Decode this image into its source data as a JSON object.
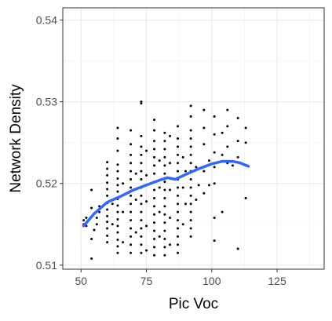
{
  "chart_data": {
    "type": "scatter",
    "xlabel": "Pic Voc",
    "ylabel": "Network Density",
    "xlim": [
      43,
      143
    ],
    "ylim": [
      0.5095,
      0.5415
    ],
    "x_ticks": [
      {
        "value": 50,
        "label": "50"
      },
      {
        "value": 75,
        "label": "75"
      },
      {
        "value": 100,
        "label": "100"
      },
      {
        "value": 125,
        "label": "125"
      }
    ],
    "y_ticks": [
      {
        "value": 0.51,
        "label": "0.51"
      },
      {
        "value": 0.52,
        "label": "0.52"
      },
      {
        "value": 0.53,
        "label": "0.53"
      },
      {
        "value": 0.54,
        "label": "0.54"
      }
    ],
    "grid": true,
    "colors": {
      "points": "#000000",
      "smooth": "#3366ff",
      "grid_major": "#ebebeb",
      "grid_minor": "#f5f5f5",
      "panel_border": "#333333"
    },
    "points": [
      [
        51,
        0.515
      ],
      [
        51,
        0.5155
      ],
      [
        52,
        0.5148
      ],
      [
        52,
        0.5158
      ],
      [
        54,
        0.5108
      ],
      [
        54,
        0.5132
      ],
      [
        54,
        0.517
      ],
      [
        54,
        0.5192
      ],
      [
        55,
        0.5143
      ],
      [
        56,
        0.515
      ],
      [
        56,
        0.5158
      ],
      [
        57,
        0.5165
      ],
      [
        57,
        0.5172
      ],
      [
        60,
        0.5128
      ],
      [
        60,
        0.5136
      ],
      [
        60,
        0.5145
      ],
      [
        60,
        0.5153
      ],
      [
        60,
        0.516
      ],
      [
        60,
        0.5168
      ],
      [
        60,
        0.5176
      ],
      [
        60,
        0.5185
      ],
      [
        60,
        0.5193
      ],
      [
        60,
        0.5201
      ],
      [
        60,
        0.521
      ],
      [
        60,
        0.5218
      ],
      [
        60,
        0.5226
      ],
      [
        62,
        0.515
      ],
      [
        62,
        0.5175
      ],
      [
        64,
        0.5115
      ],
      [
        64,
        0.5123
      ],
      [
        64,
        0.5131
      ],
      [
        64,
        0.514
      ],
      [
        64,
        0.5148
      ],
      [
        64,
        0.5156
      ],
      [
        64,
        0.5165
      ],
      [
        64,
        0.5173
      ],
      [
        64,
        0.5181
      ],
      [
        64,
        0.519
      ],
      [
        64,
        0.5198
      ],
      [
        64,
        0.5206
      ],
      [
        64,
        0.5215
      ],
      [
        64,
        0.5223
      ],
      [
        64,
        0.524
      ],
      [
        64,
        0.5255
      ],
      [
        64,
        0.5268
      ],
      [
        66,
        0.5128
      ],
      [
        66,
        0.5165
      ],
      [
        66,
        0.52
      ],
      [
        69,
        0.5115
      ],
      [
        69,
        0.5125
      ],
      [
        69,
        0.5135
      ],
      [
        69,
        0.5145
      ],
      [
        69,
        0.5155
      ],
      [
        69,
        0.5165
      ],
      [
        69,
        0.5175
      ],
      [
        69,
        0.5185
      ],
      [
        69,
        0.5195
      ],
      [
        69,
        0.5205
      ],
      [
        69,
        0.5215
      ],
      [
        69,
        0.5225
      ],
      [
        69,
        0.5235
      ],
      [
        69,
        0.5248
      ],
      [
        69,
        0.5265
      ],
      [
        71,
        0.514
      ],
      [
        71,
        0.518
      ],
      [
        71,
        0.5212
      ],
      [
        73,
        0.5115
      ],
      [
        73,
        0.5125
      ],
      [
        73,
        0.5135
      ],
      [
        73,
        0.5145
      ],
      [
        73,
        0.5155
      ],
      [
        73,
        0.5165
      ],
      [
        73,
        0.5175
      ],
      [
        73,
        0.5185
      ],
      [
        73,
        0.5195
      ],
      [
        73,
        0.5205
      ],
      [
        73,
        0.5215
      ],
      [
        73,
        0.5225
      ],
      [
        73,
        0.5235
      ],
      [
        73,
        0.5245
      ],
      [
        73,
        0.5258
      ],
      [
        73,
        0.53
      ],
      [
        73,
        0.5298
      ],
      [
        75,
        0.5118
      ],
      [
        75,
        0.5148
      ],
      [
        75,
        0.5178
      ],
      [
        75,
        0.521
      ],
      [
        75,
        0.524
      ],
      [
        78,
        0.5112
      ],
      [
        78,
        0.5122
      ],
      [
        78,
        0.5132
      ],
      [
        78,
        0.5142
      ],
      [
        78,
        0.5152
      ],
      [
        78,
        0.5162
      ],
      [
        78,
        0.5172
      ],
      [
        78,
        0.5182
      ],
      [
        78,
        0.5192
      ],
      [
        78,
        0.5202
      ],
      [
        78,
        0.5212
      ],
      [
        78,
        0.5222
      ],
      [
        78,
        0.5232
      ],
      [
        78,
        0.5242
      ],
      [
        78,
        0.5252
      ],
      [
        78,
        0.5265
      ],
      [
        78,
        0.5278
      ],
      [
        80,
        0.5135
      ],
      [
        80,
        0.5165
      ],
      [
        80,
        0.5195
      ],
      [
        80,
        0.5228
      ],
      [
        82,
        0.5112
      ],
      [
        82,
        0.5122
      ],
      [
        82,
        0.5132
      ],
      [
        82,
        0.5142
      ],
      [
        82,
        0.5152
      ],
      [
        82,
        0.5162
      ],
      [
        82,
        0.5172
      ],
      [
        82,
        0.5182
      ],
      [
        82,
        0.5192
      ],
      [
        82,
        0.5202
      ],
      [
        82,
        0.5212
      ],
      [
        82,
        0.5222
      ],
      [
        82,
        0.5232
      ],
      [
        82,
        0.5242
      ],
      [
        82,
        0.5252
      ],
      [
        82,
        0.5262
      ],
      [
        84,
        0.5125
      ],
      [
        84,
        0.5158
      ],
      [
        84,
        0.5192
      ],
      [
        84,
        0.5225
      ],
      [
        84,
        0.5258
      ],
      [
        87,
        0.5115
      ],
      [
        87,
        0.5125
      ],
      [
        87,
        0.5135
      ],
      [
        87,
        0.5145
      ],
      [
        87,
        0.5155
      ],
      [
        87,
        0.5165
      ],
      [
        87,
        0.5175
      ],
      [
        87,
        0.5185
      ],
      [
        87,
        0.5195
      ],
      [
        87,
        0.5205
      ],
      [
        87,
        0.5215
      ],
      [
        87,
        0.5225
      ],
      [
        87,
        0.5235
      ],
      [
        87,
        0.5245
      ],
      [
        87,
        0.5255
      ],
      [
        87,
        0.527
      ],
      [
        89,
        0.515
      ],
      [
        89,
        0.5195
      ],
      [
        89,
        0.5232
      ],
      [
        90,
        0.5175
      ],
      [
        90,
        0.5215
      ],
      [
        92,
        0.5135
      ],
      [
        92,
        0.5145
      ],
      [
        92,
        0.5155
      ],
      [
        92,
        0.5165
      ],
      [
        92,
        0.5175
      ],
      [
        92,
        0.5185
      ],
      [
        92,
        0.5195
      ],
      [
        92,
        0.5205
      ],
      [
        92,
        0.5215
      ],
      [
        92,
        0.5225
      ],
      [
        92,
        0.5235
      ],
      [
        92,
        0.5245
      ],
      [
        92,
        0.5255
      ],
      [
        92,
        0.5265
      ],
      [
        92,
        0.5282
      ],
      [
        92,
        0.5295
      ],
      [
        94,
        0.518
      ],
      [
        94,
        0.522
      ],
      [
        95,
        0.5198
      ],
      [
        97,
        0.5188
      ],
      [
        97,
        0.5215
      ],
      [
        97,
        0.5248
      ],
      [
        97,
        0.5268
      ],
      [
        97,
        0.529
      ],
      [
        99,
        0.5198
      ],
      [
        99,
        0.5228
      ],
      [
        101,
        0.513
      ],
      [
        101,
        0.5158
      ],
      [
        101,
        0.52
      ],
      [
        101,
        0.522
      ],
      [
        101,
        0.5238
      ],
      [
        101,
        0.526
      ],
      [
        101,
        0.5282
      ],
      [
        104,
        0.5165
      ],
      [
        104,
        0.5235
      ],
      [
        104,
        0.5262
      ],
      [
        106,
        0.5225
      ],
      [
        106,
        0.5245
      ],
      [
        106,
        0.527
      ],
      [
        106,
        0.529
      ],
      [
        108,
        0.5222
      ],
      [
        110,
        0.512
      ],
      [
        110,
        0.5232
      ],
      [
        110,
        0.5252
      ],
      [
        110,
        0.528
      ],
      [
        113,
        0.5182
      ],
      [
        113,
        0.5222
      ],
      [
        113,
        0.525
      ],
      [
        113,
        0.5268
      ]
    ],
    "smooth_line": [
      [
        51,
        0.5148
      ],
      [
        55,
        0.5163
      ],
      [
        60,
        0.5177
      ],
      [
        65,
        0.5184
      ],
      [
        70,
        0.5192
      ],
      [
        75,
        0.5198
      ],
      [
        80,
        0.5204
      ],
      [
        83,
        0.5207
      ],
      [
        86,
        0.5205
      ],
      [
        90,
        0.5211
      ],
      [
        95,
        0.5218
      ],
      [
        100,
        0.5224
      ],
      [
        104,
        0.5227
      ],
      [
        108,
        0.5227
      ],
      [
        111,
        0.5225
      ],
      [
        114,
        0.5221
      ]
    ]
  }
}
